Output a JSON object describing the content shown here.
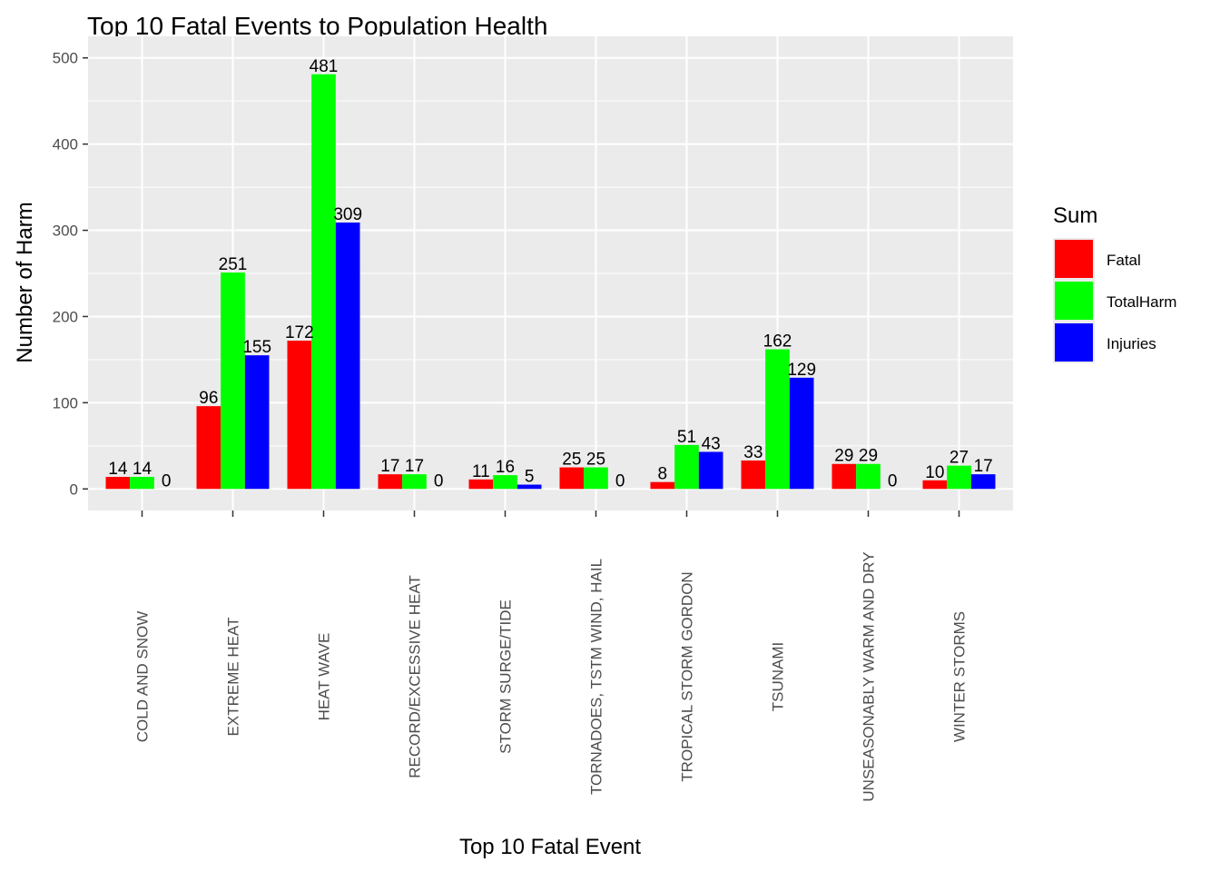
{
  "chart_data": {
    "type": "bar",
    "title": "Top 10 Fatal Events to Population Health",
    "xlabel": "Top 10 Fatal Event",
    "ylabel": "Number of Harm",
    "ylim": [
      -25,
      525
    ],
    "yticks": [
      0,
      100,
      200,
      300,
      400,
      500
    ],
    "grid": true,
    "legend": {
      "title": "Sum",
      "position": "right"
    },
    "categories": [
      "COLD AND SNOW",
      "EXTREME HEAT",
      "HEAT WAVE",
      "RECORD/EXCESSIVE HEAT",
      "STORM SURGE/TIDE",
      "TORNADOES, TSTM WIND, HAIL",
      "TROPICAL STORM GORDON",
      "TSUNAMI",
      "UNSEASONABLY WARM AND DRY",
      "WINTER STORMS"
    ],
    "series": [
      {
        "name": "Fatal",
        "color": "#ff0000",
        "values": [
          14,
          96,
          172,
          17,
          11,
          25,
          8,
          33,
          29,
          10
        ]
      },
      {
        "name": "TotalHarm",
        "color": "#00ff00",
        "values": [
          14,
          251,
          481,
          17,
          16,
          25,
          51,
          162,
          29,
          27
        ]
      },
      {
        "name": "Injuries",
        "color": "#0000ff",
        "values": [
          0,
          155,
          309,
          0,
          5,
          0,
          43,
          129,
          0,
          17
        ]
      }
    ]
  }
}
